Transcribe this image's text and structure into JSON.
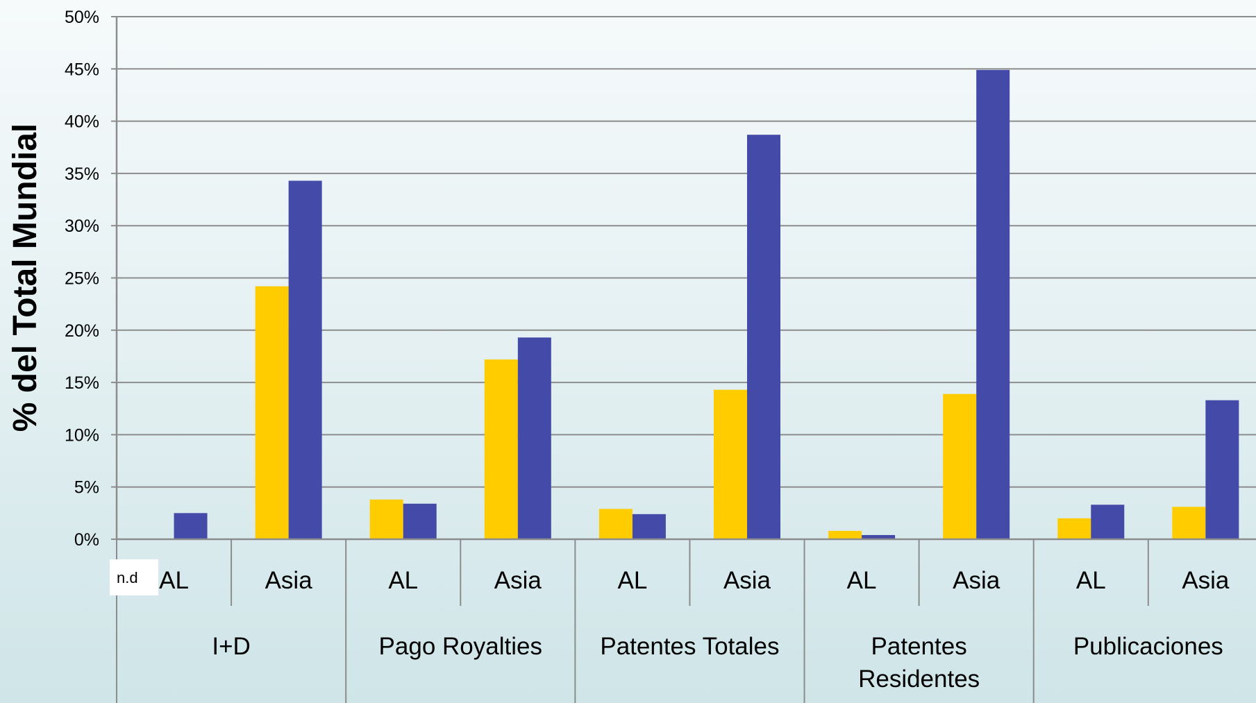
{
  "chart_data": {
    "type": "bar",
    "ylabel": "% del Total Mundial",
    "ylim": [
      0,
      50
    ],
    "yticks": [
      "0%",
      "5%",
      "10%",
      "15%",
      "20%",
      "25%",
      "30%",
      "35%",
      "40%",
      "45%",
      "50%"
    ],
    "grid": true,
    "colors": [
      "#ffcc00",
      "#434aa8"
    ],
    "groups": [
      {
        "label": "I+D",
        "categories": [
          {
            "label": "AL",
            "values": [
              null,
              2.5
            ],
            "note": "n.d"
          },
          {
            "label": "Asia",
            "values": [
              24.2,
              34.3
            ]
          }
        ]
      },
      {
        "label": "Pago Royalties",
        "categories": [
          {
            "label": "AL",
            "values": [
              3.8,
              3.4
            ]
          },
          {
            "label": "Asia",
            "values": [
              17.2,
              19.3
            ]
          }
        ]
      },
      {
        "label": "Patentes Totales",
        "categories": [
          {
            "label": "AL",
            "values": [
              2.9,
              2.4
            ]
          },
          {
            "label": "Asia",
            "values": [
              14.3,
              38.7
            ]
          }
        ]
      },
      {
        "label": "Patentes Residentes",
        "label_lines": [
          "Patentes",
          "Residentes"
        ],
        "categories": [
          {
            "label": "AL",
            "values": [
              0.8,
              0.4
            ]
          },
          {
            "label": "Asia",
            "values": [
              13.9,
              44.9
            ]
          }
        ]
      },
      {
        "label": "Publicaciones",
        "categories": [
          {
            "label": "AL",
            "values": [
              2.0,
              3.3
            ]
          },
          {
            "label": "Asia",
            "values": [
              3.1,
              13.3
            ]
          }
        ]
      }
    ]
  }
}
